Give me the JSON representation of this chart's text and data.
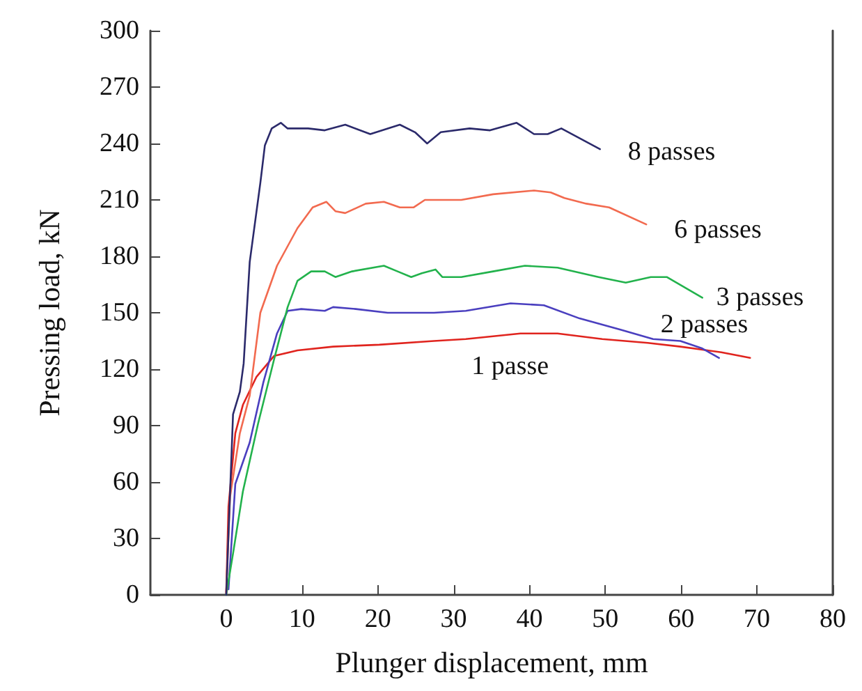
{
  "chart_data": {
    "type": "line",
    "xlabel": "Plunger displacement, mm",
    "ylabel": "Pressing load, kN",
    "xlim": [
      -10,
      80
    ],
    "xticks": [
      0,
      10,
      20,
      30,
      40,
      50,
      60,
      70,
      80
    ],
    "ylim": [
      0,
      300
    ],
    "yticks": [
      0,
      30,
      60,
      90,
      120,
      150,
      180,
      210,
      240,
      270,
      300
    ],
    "grid": false,
    "legend": false,
    "marker": "none",
    "line_style": "solid",
    "series": [
      {
        "name": "1 passe",
        "color": "#e0241e",
        "x": [
          0,
          0.3,
          1.2,
          2.2,
          4,
          6.3,
          9.4,
          14.1,
          20.2,
          27.4,
          31.6,
          38.8,
          43.7,
          49.6,
          55.6,
          59.9,
          65.3,
          69.1
        ],
        "values": [
          1,
          47,
          86,
          101,
          116,
          127,
          130,
          132,
          133,
          135,
          136,
          139,
          139,
          136,
          134,
          132,
          129,
          126
        ]
      },
      {
        "name": "2 passes",
        "color": "#4a3fbf",
        "x": [
          0.3,
          1.2,
          3.1,
          4.9,
          6.7,
          8.1,
          9.9,
          13,
          14.1,
          17.1,
          21.3,
          23.8,
          27.4,
          31.6,
          37.5,
          41.9,
          46.6,
          52,
          56.3,
          59.9,
          62.8,
          65
        ],
        "values": [
          3,
          59,
          81,
          113,
          139,
          151,
          152,
          151,
          153,
          152,
          150,
          150,
          150,
          151,
          155,
          154,
          147,
          141,
          136,
          135,
          131,
          126
        ]
      },
      {
        "name": "3 passes",
        "color": "#22b24c",
        "x": [
          0,
          0.9,
          2.2,
          4.2,
          6.3,
          8.1,
          9.4,
          11.2,
          13,
          14.4,
          16.6,
          20.8,
          22.6,
          24.4,
          25.8,
          27.6,
          28.5,
          31,
          35.2,
          39.4,
          43.7,
          49.1,
          52.7,
          56,
          58.1,
          62.8
        ],
        "values": [
          0,
          22,
          55,
          91,
          125,
          153,
          167,
          172,
          172,
          169,
          172,
          175,
          172,
          169,
          171,
          173,
          169,
          169,
          172,
          175,
          174,
          169,
          166,
          169,
          169,
          158
        ]
      },
      {
        "name": "6 passes",
        "color": "#f26a4f",
        "x": [
          0,
          0.5,
          1.8,
          3.1,
          4.5,
          6.7,
          9.4,
          11.4,
          13.2,
          14.4,
          15.7,
          18.4,
          20.8,
          22.9,
          24.7,
          26.2,
          31,
          35.2,
          40.6,
          42.8,
          44.6,
          47.5,
          50.5,
          55.4
        ],
        "values": [
          1,
          52,
          86,
          106,
          150,
          175,
          195,
          206,
          209,
          204,
          203,
          208,
          209,
          206,
          206,
          210,
          210,
          213,
          215,
          214,
          211,
          208,
          206,
          197
        ]
      },
      {
        "name": "8 passes",
        "color": "#2b2a6b",
        "x": [
          0,
          0.9,
          1.8,
          2.3,
          3.1,
          4.5,
          5.1,
          6,
          7.2,
          8.1,
          10.8,
          13,
          15.7,
          19,
          22.9,
          24.9,
          26.5,
          28.3,
          32.1,
          34.8,
          38.3,
          40.6,
          42.4,
          44.2,
          49.3
        ],
        "values": [
          0,
          96,
          108,
          123,
          177,
          219,
          239,
          248,
          251,
          248,
          248,
          247,
          250,
          245,
          250,
          246,
          240,
          246,
          248,
          247,
          251,
          245,
          245,
          248,
          237
        ]
      }
    ]
  }
}
